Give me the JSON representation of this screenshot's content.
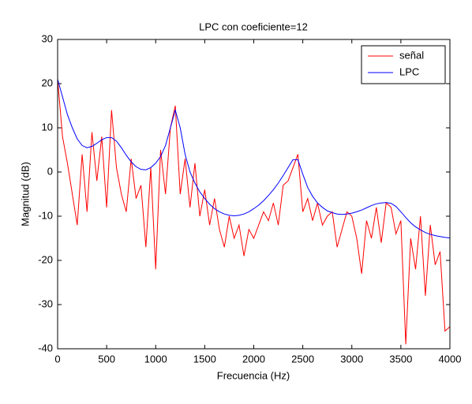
{
  "chart_data": {
    "type": "line",
    "title": "LPC con coeficiente=12",
    "xlabel": "Frecuencia (Hz)",
    "ylabel": "Magnitud (dB)",
    "x": [
      0,
      50,
      100,
      150,
      200,
      250,
      300,
      350,
      400,
      450,
      500,
      550,
      600,
      650,
      700,
      750,
      800,
      850,
      900,
      950,
      1000,
      1050,
      1100,
      1150,
      1200,
      1250,
      1300,
      1350,
      1400,
      1450,
      1500,
      1550,
      1600,
      1650,
      1700,
      1750,
      1800,
      1850,
      1900,
      1950,
      2000,
      2050,
      2100,
      2150,
      2200,
      2250,
      2300,
      2350,
      2400,
      2450,
      2500,
      2550,
      2600,
      2650,
      2700,
      2750,
      2800,
      2850,
      2900,
      2950,
      3000,
      3050,
      3100,
      3150,
      3200,
      3250,
      3300,
      3350,
      3400,
      3450,
      3500,
      3550,
      3600,
      3650,
      3700,
      3750,
      3800,
      3850,
      3900,
      3950,
      4000
    ],
    "series": [
      {
        "name": "señal",
        "color": "#ff0000",
        "values": [
          21,
          8,
          2,
          -5,
          -12,
          4,
          -9,
          9,
          -2,
          8,
          -8,
          14,
          1,
          -5,
          -9,
          3,
          -6,
          -3,
          -17,
          1,
          -22,
          5,
          -5,
          10,
          15,
          -5,
          3,
          -8,
          2,
          -10,
          -4,
          -12,
          -6,
          -13,
          -17,
          -10,
          -15,
          -12,
          -19,
          -13,
          -15,
          -12,
          -9,
          -11,
          -7,
          -12,
          -3,
          -2,
          1,
          4,
          -9,
          -6,
          -11,
          -7,
          -12,
          -10,
          -9,
          -17,
          -13,
          -9,
          -10,
          -15,
          -23,
          -11,
          -15,
          -8,
          -16,
          -7,
          -8,
          -14,
          -11,
          -39,
          -15,
          -22,
          -10,
          -28,
          -12,
          -21,
          -18,
          -36,
          -35
        ]
      },
      {
        "name": "LPC",
        "color": "#0000ff",
        "values": [
          21,
          17,
          13,
          10,
          7.5,
          6,
          5.5,
          5.8,
          6.5,
          7.3,
          7.8,
          7.8,
          7,
          5.5,
          3.8,
          2.3,
          1.2,
          0.6,
          0.5,
          1,
          2,
          3.5,
          6,
          10,
          14,
          10,
          4,
          0,
          -2.5,
          -4.5,
          -6,
          -7.3,
          -8.3,
          -9,
          -9.5,
          -9.8,
          -9.9,
          -9.8,
          -9.5,
          -9,
          -8.3,
          -7.5,
          -6.5,
          -5.3,
          -4,
          -2.5,
          -0.8,
          1,
          2.8,
          2.8,
          -0.5,
          -3.5,
          -5.5,
          -7,
          -8,
          -8.8,
          -9.2,
          -9.5,
          -9.6,
          -9.5,
          -9.3,
          -9,
          -8.6,
          -8.1,
          -7.6,
          -7.2,
          -7,
          -6.9,
          -7.1,
          -7.8,
          -9,
          -10.3,
          -11.5,
          -12.4,
          -13.1,
          -13.7,
          -14.1,
          -14.4,
          -14.6,
          -14.8,
          -14.9
        ]
      }
    ],
    "xlim": [
      0,
      4000
    ],
    "xticks": [
      0,
      500,
      1000,
      1500,
      2000,
      2500,
      3000,
      3500,
      4000
    ],
    "ylim": [
      -40,
      30
    ],
    "yticks": [
      -40,
      -30,
      -20,
      -10,
      0,
      10,
      20,
      30
    ],
    "grid": false,
    "legend": "northeast"
  }
}
